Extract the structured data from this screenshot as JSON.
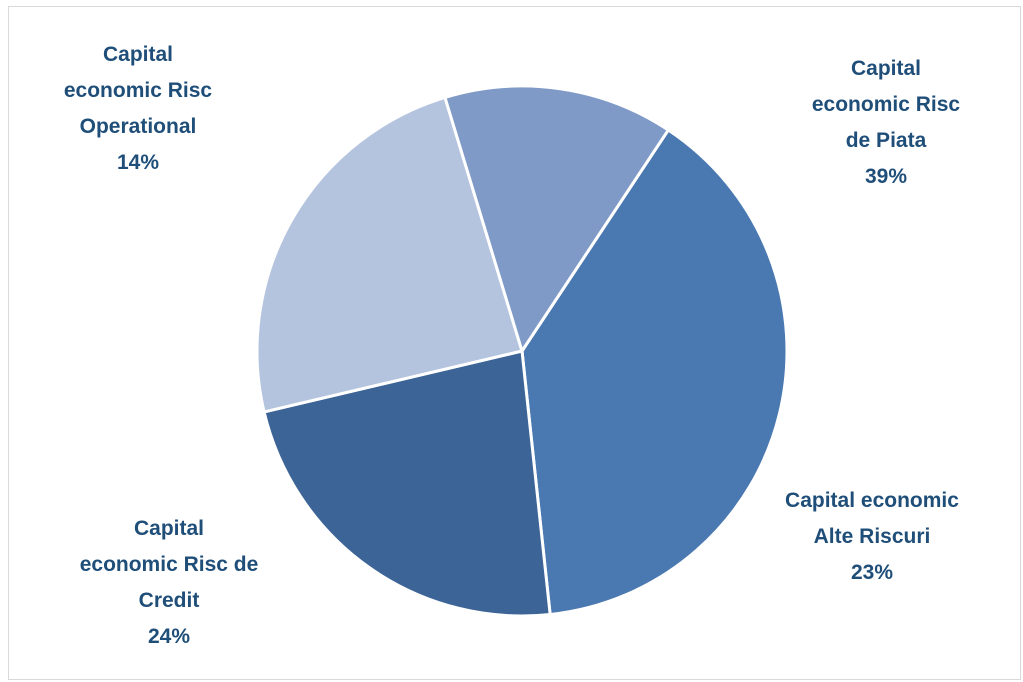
{
  "chart_data": {
    "type": "pie",
    "title": "",
    "slices": [
      {
        "name": "Capital economic Risc de Piata",
        "label_lines": [
          "Capital",
          "economic Risc",
          "de Piata"
        ],
        "percent_label": "39%",
        "value": 39,
        "color": "#4a78b0"
      },
      {
        "name": "Capital economic Alte Riscuri",
        "label_lines": [
          "Capital economic",
          "Alte Riscuri"
        ],
        "percent_label": "23%",
        "value": 23,
        "color": "#3d6496"
      },
      {
        "name": "Capital economic Risc de Credit",
        "label_lines": [
          "Capital",
          "economic Risc de",
          "Credit"
        ],
        "percent_label": "24%",
        "value": 24,
        "color": "#b4c3de"
      },
      {
        "name": "Capital economic Risc Operational",
        "label_lines": [
          "Capital",
          "economic Risc",
          "Operational"
        ],
        "percent_label": "14%",
        "value": 14,
        "color": "#7f9ac7"
      }
    ],
    "legend": "none",
    "label_color": "#1f4e79"
  }
}
